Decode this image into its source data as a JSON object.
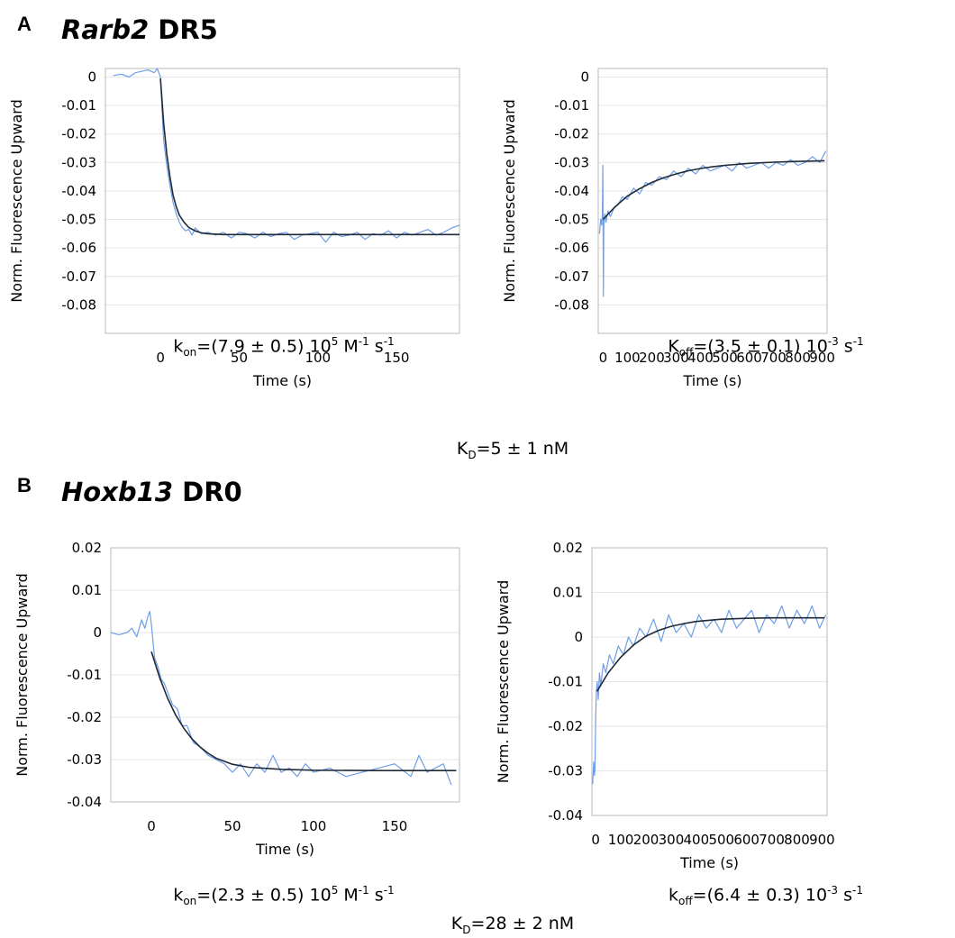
{
  "panels": [
    {
      "letter": "A",
      "title_gene": "Rarb2",
      "title_suffix": "DR5",
      "kd": {
        "sym": "K",
        "sub": "D",
        "val": "=5 ± 1 nM"
      },
      "assoc_caption": {
        "sym": "k",
        "sub": "on",
        "val": "=(7.9 ± 0.5) 10",
        "sup1": "5",
        "mid": " M",
        "sup2": "-1",
        "end": " s",
        "sup3": "-1"
      },
      "dissoc_caption": {
        "sym": "K",
        "sub": "off",
        "val": "=(3.5 ± 0.1) 10",
        "sup1": "-3",
        "end": " s",
        "sup2": "-1"
      }
    },
    {
      "letter": "B",
      "title_gene": "Hoxb13",
      "title_suffix": "DR0",
      "kd": {
        "sym": "K",
        "sub": "D",
        "val": "=28 ± 2 nM"
      },
      "assoc_caption": {
        "sym": "k",
        "sub": "on",
        "val": "=(2.3 ± 0.5) 10",
        "sup1": "5",
        "mid": " M",
        "sup2": "-1",
        "end": " s",
        "sup3": "-1"
      },
      "dissoc_caption": {
        "sym": "k",
        "sub": "off",
        "val": "=(6.4 ± 0.3) 10",
        "sup1": "-3",
        "end": " s",
        "sup2": "-1"
      }
    }
  ],
  "chart_data": [
    {
      "type": "line",
      "panel": "A",
      "title": "",
      "xlabel": "Time (s)",
      "ylabel": "Norm. Fluorescence Upward",
      "xlim": [
        -35,
        190
      ],
      "ylim": [
        -0.09,
        0.003
      ],
      "xticks": [
        0,
        50,
        100,
        150
      ],
      "xtick_labels": [
        "0",
        "50",
        "100",
        "150"
      ],
      "yticks": [
        0,
        -0.01,
        -0.02,
        -0.03,
        -0.04,
        -0.05,
        -0.06,
        -0.07,
        -0.08
      ],
      "ytick_labels": [
        "0",
        "-0.01",
        "-0.02",
        "-0.03",
        "-0.04",
        "-0.05",
        "-0.06",
        "-0.07",
        "-0.08"
      ],
      "grid": true,
      "colors": {
        "raw": "#6f9ee8",
        "fit": "#1f2a36"
      },
      "series": [
        {
          "kind": "raw",
          "x": [
            -30,
            -25,
            -20,
            -16,
            -12,
            -8,
            -4,
            -2,
            0,
            1,
            2,
            4,
            6,
            8,
            10,
            12,
            14,
            16,
            18,
            20,
            22,
            26,
            30,
            35,
            40,
            45,
            50,
            55,
            60,
            65,
            70,
            75,
            80,
            85,
            90,
            95,
            100,
            105,
            110,
            115,
            120,
            125,
            130,
            135,
            140,
            145,
            150,
            155,
            160,
            165,
            170,
            175,
            180,
            185,
            190
          ],
          "y": [
            0.0005,
            0.001,
            0.0,
            0.0015,
            0.002,
            0.0025,
            0.0015,
            0.003,
            0.0,
            -0.012,
            -0.022,
            -0.031,
            -0.038,
            -0.044,
            -0.048,
            -0.051,
            -0.053,
            -0.054,
            -0.0535,
            -0.0555,
            -0.053,
            -0.055,
            -0.0545,
            -0.0555,
            -0.0545,
            -0.0565,
            -0.0545,
            -0.055,
            -0.0565,
            -0.0545,
            -0.056,
            -0.055,
            -0.0545,
            -0.057,
            -0.0555,
            -0.055,
            -0.0545,
            -0.058,
            -0.0545,
            -0.056,
            -0.0555,
            -0.0545,
            -0.057,
            -0.055,
            -0.0555,
            -0.054,
            -0.0565,
            -0.0545,
            -0.0555,
            -0.0545,
            -0.0535,
            -0.0555,
            -0.0545,
            -0.053,
            -0.052
          ]
        },
        {
          "kind": "fit",
          "x": [
            0,
            2,
            4,
            6,
            8,
            10,
            12,
            15,
            18,
            22,
            26,
            30,
            40,
            60,
            100,
            150,
            190
          ],
          "y": [
            -0.0005,
            -0.016,
            -0.027,
            -0.035,
            -0.0415,
            -0.0455,
            -0.0485,
            -0.051,
            -0.0528,
            -0.054,
            -0.0547,
            -0.055,
            -0.0553,
            -0.0553,
            -0.0553,
            -0.0553,
            -0.0553
          ]
        }
      ]
    },
    {
      "type": "line",
      "panel": "A",
      "title": "",
      "xlabel": "Time (s)",
      "ylabel": "Norm. Fluorescence Upward",
      "xlim": [
        -20,
        920
      ],
      "ylim": [
        -0.09,
        0.003
      ],
      "xticks": [
        0,
        100,
        200,
        300,
        400,
        500,
        600,
        700,
        800,
        900
      ],
      "xtick_labels": [
        "0",
        "100",
        "200",
        "300",
        "400",
        "500",
        "600",
        "700",
        "800",
        "900"
      ],
      "yticks": [
        0,
        -0.01,
        -0.02,
        -0.03,
        -0.04,
        -0.05,
        -0.06,
        -0.07,
        -0.08
      ],
      "ytick_labels": [
        "0",
        "-0.01",
        "-0.02",
        "-0.03",
        "-0.04",
        "-0.05",
        "-0.06",
        "-0.07",
        "-0.08"
      ],
      "grid": true,
      "colors": {
        "raw": "#6f9ee8",
        "fit": "#1f2a36"
      },
      "series": [
        {
          "kind": "raw",
          "x": [
            -15,
            -10,
            -6,
            -3,
            -1,
            0,
            1,
            3,
            5,
            8,
            12,
            20,
            30,
            45,
            60,
            80,
            100,
            125,
            150,
            175,
            200,
            230,
            260,
            290,
            320,
            350,
            380,
            410,
            440,
            470,
            500,
            530,
            560,
            590,
            620,
            650,
            680,
            710,
            740,
            770,
            800,
            830,
            860,
            890,
            915
          ],
          "y": [
            -0.055,
            -0.05,
            -0.052,
            -0.048,
            -0.031,
            -0.05,
            -0.077,
            -0.052,
            -0.049,
            -0.048,
            -0.051,
            -0.047,
            -0.049,
            -0.046,
            -0.045,
            -0.042,
            -0.043,
            -0.039,
            -0.041,
            -0.037,
            -0.038,
            -0.035,
            -0.036,
            -0.033,
            -0.035,
            -0.032,
            -0.034,
            -0.031,
            -0.033,
            -0.032,
            -0.031,
            -0.033,
            -0.03,
            -0.032,
            -0.031,
            -0.03,
            -0.032,
            -0.03,
            -0.031,
            -0.029,
            -0.031,
            -0.03,
            -0.028,
            -0.03,
            -0.026
          ]
        },
        {
          "kind": "fit",
          "x": [
            0,
            50,
            100,
            150,
            200,
            250,
            300,
            350,
            400,
            450,
            500,
            600,
            700,
            800,
            910
          ],
          "y": [
            -0.05,
            -0.0455,
            -0.0418,
            -0.0392,
            -0.037,
            -0.0353,
            -0.034,
            -0.0329,
            -0.0321,
            -0.0315,
            -0.031,
            -0.0303,
            -0.0299,
            -0.0296,
            -0.0294
          ]
        }
      ]
    },
    {
      "type": "line",
      "panel": "B",
      "title": "",
      "xlabel": "Time (s)",
      "ylabel": "Norm. Fluorescence Upward",
      "xlim": [
        -25,
        190
      ],
      "ylim": [
        -0.04,
        0.02
      ],
      "xticks": [
        0,
        50,
        100,
        150
      ],
      "xtick_labels": [
        "0",
        "50",
        "100",
        "150"
      ],
      "yticks": [
        0.02,
        0.01,
        0,
        -0.01,
        -0.02,
        -0.03,
        -0.04
      ],
      "ytick_labels": [
        "0.02",
        "0.01",
        "0",
        "-0.01",
        "-0.02",
        "-0.03",
        "-0.04"
      ],
      "grid": true,
      "colors": {
        "raw": "#6f9ee8",
        "fit": "#1f2a36"
      },
      "series": [
        {
          "kind": "raw",
          "x": [
            -25,
            -20,
            -15,
            -12,
            -9,
            -6,
            -4,
            -2,
            -1,
            0,
            1,
            2,
            4,
            6,
            8,
            10,
            13,
            16,
            19,
            22,
            26,
            30,
            35,
            40,
            45,
            50,
            55,
            60,
            65,
            70,
            75,
            80,
            85,
            90,
            95,
            100,
            110,
            120,
            130,
            140,
            150,
            160,
            165,
            170,
            175,
            180,
            185
          ],
          "y": [
            0.0,
            -0.0005,
            0.0,
            0.001,
            -0.001,
            0.003,
            0.001,
            0.004,
            0.005,
            0.002,
            -0.002,
            -0.006,
            -0.008,
            -0.011,
            -0.012,
            -0.014,
            -0.017,
            -0.018,
            -0.022,
            -0.022,
            -0.026,
            -0.027,
            -0.029,
            -0.03,
            -0.031,
            -0.033,
            -0.031,
            -0.034,
            -0.031,
            -0.033,
            -0.029,
            -0.033,
            -0.032,
            -0.034,
            -0.031,
            -0.033,
            -0.032,
            -0.034,
            -0.033,
            -0.032,
            -0.031,
            -0.034,
            -0.029,
            -0.033,
            -0.032,
            -0.031,
            -0.036
          ]
        },
        {
          "kind": "fit",
          "x": [
            0,
            5,
            10,
            15,
            20,
            25,
            30,
            35,
            40,
            50,
            60,
            80,
            100,
            140,
            188
          ],
          "y": [
            -0.0045,
            -0.0105,
            -0.0155,
            -0.0195,
            -0.0226,
            -0.0251,
            -0.027,
            -0.0285,
            -0.0297,
            -0.0311,
            -0.0318,
            -0.0323,
            -0.0325,
            -0.0326,
            -0.0326
          ]
        }
      ]
    },
    {
      "type": "line",
      "panel": "B",
      "title": "",
      "xlabel": "Time (s)",
      "ylabel": "Norm. Fluorescence Upward",
      "xlim": [
        -15,
        920
      ],
      "ylim": [
        -0.04,
        0.02
      ],
      "xticks": [
        0,
        100,
        200,
        300,
        400,
        500,
        600,
        700,
        800,
        900
      ],
      "xtick_labels": [
        "0",
        "100",
        "200",
        "300",
        "400",
        "500",
        "600",
        "700",
        "800",
        "900"
      ],
      "yticks": [
        0.02,
        0.01,
        0,
        -0.01,
        -0.02,
        -0.03,
        -0.04
      ],
      "ytick_labels": [
        "0.02",
        "0.01",
        "0",
        "-0.01",
        "-0.02",
        "-0.03",
        "-0.04"
      ],
      "grid": true,
      "colors": {
        "raw": "#6f9ee8",
        "fit": "#1f2a36"
      },
      "series": [
        {
          "kind": "raw",
          "x": [
            -12,
            -8,
            -5,
            -3,
            0,
            3,
            6,
            10,
            15,
            20,
            30,
            40,
            55,
            70,
            90,
            110,
            130,
            150,
            175,
            200,
            230,
            260,
            290,
            320,
            350,
            380,
            410,
            440,
            470,
            500,
            530,
            560,
            590,
            620,
            650,
            680,
            710,
            740,
            770,
            800,
            830,
            860,
            890,
            915
          ],
          "y": [
            -0.033,
            -0.028,
            -0.031,
            -0.03,
            -0.018,
            -0.012,
            -0.01,
            -0.014,
            -0.008,
            -0.011,
            -0.006,
            -0.008,
            -0.004,
            -0.006,
            -0.002,
            -0.004,
            0.0,
            -0.002,
            0.002,
            0.0,
            0.004,
            -0.001,
            0.005,
            0.001,
            0.003,
            0.0,
            0.005,
            0.002,
            0.004,
            0.001,
            0.006,
            0.002,
            0.004,
            0.006,
            0.001,
            0.005,
            0.003,
            0.007,
            0.002,
            0.006,
            0.003,
            0.007,
            0.002,
            0.005
          ]
        },
        {
          "kind": "fit",
          "x": [
            5,
            50,
            100,
            150,
            200,
            250,
            300,
            350,
            400,
            500,
            600,
            700,
            800,
            910
          ],
          "y": [
            -0.0122,
            -0.008,
            -0.0045,
            -0.0018,
            0.0002,
            0.0015,
            0.0024,
            0.003,
            0.0035,
            0.004,
            0.0042,
            0.0043,
            0.0043,
            0.0043
          ]
        }
      ]
    }
  ]
}
